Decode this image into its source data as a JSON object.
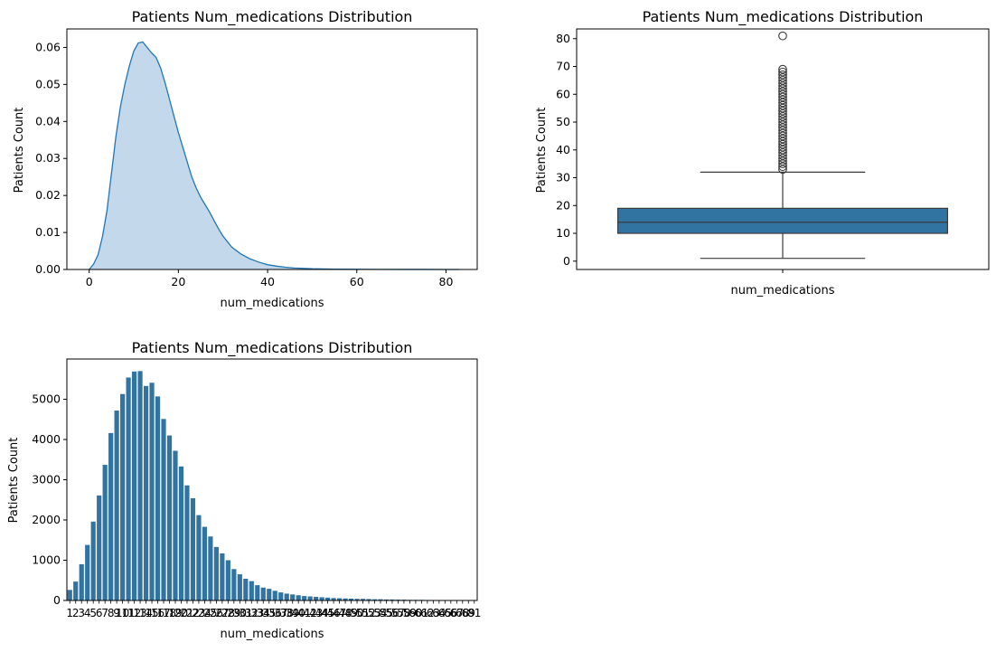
{
  "chart_data": [
    {
      "type": "area",
      "title": "Patients Num_medications Distribution",
      "xlabel": "num_medications",
      "ylabel": "Patients Count",
      "xlim": [
        -5,
        87
      ],
      "ylim": [
        0,
        0.065
      ],
      "xticks": [
        "0",
        "20",
        "40",
        "60",
        "80"
      ],
      "yticks": [
        "0.00",
        "0.01",
        "0.02",
        "0.03",
        "0.04",
        "0.05",
        "0.06"
      ],
      "grid": false,
      "color": "#1f77b4",
      "fill_color": "#c4d8ec",
      "x": [
        0,
        1,
        2,
        3,
        4,
        5,
        6,
        7,
        8,
        9,
        10,
        11,
        12,
        13,
        14,
        15,
        16,
        17,
        18,
        19,
        20,
        21,
        22,
        23,
        24,
        25,
        26,
        27,
        28,
        29,
        30,
        32,
        34,
        36,
        38,
        40,
        42,
        44,
        46,
        48,
        50,
        55,
        60,
        65,
        70,
        75,
        80,
        83
      ],
      "y": [
        0.0,
        0.0015,
        0.004,
        0.009,
        0.016,
        0.026,
        0.036,
        0.044,
        0.05,
        0.055,
        0.059,
        0.0612,
        0.0615,
        0.06,
        0.0585,
        0.0573,
        0.0545,
        0.0505,
        0.046,
        0.0415,
        0.037,
        0.033,
        0.029,
        0.025,
        0.022,
        0.0195,
        0.0175,
        0.0155,
        0.0132,
        0.011,
        0.009,
        0.006,
        0.0042,
        0.0029,
        0.002,
        0.0013,
        0.0009,
        0.0006,
        0.0004,
        0.0003,
        0.0002,
        0.0001,
        6e-05,
        3e-05,
        2e-05,
        1e-05,
        0.0,
        0.0
      ]
    },
    {
      "type": "box",
      "title": "Patients Num_medications Distribution",
      "xlabel": "num_medications",
      "ylabel": "Patients Count",
      "ylim": [
        -3,
        83.5
      ],
      "yticks": [
        "0",
        "10",
        "20",
        "30",
        "40",
        "50",
        "60",
        "70",
        "80"
      ],
      "grid": false,
      "color": "#3274a1",
      "whisker_low": 1,
      "q1": 10,
      "median": 14,
      "q3": 19,
      "whisker_high": 32,
      "outliers": [
        33,
        34,
        35,
        36,
        37,
        38,
        39,
        40,
        41,
        42,
        43,
        44,
        45,
        46,
        47,
        48,
        49,
        50,
        51,
        52,
        53,
        54,
        55,
        56,
        57,
        58,
        59,
        60,
        61,
        62,
        63,
        64,
        65,
        66,
        67,
        68,
        69,
        81
      ]
    },
    {
      "type": "bar",
      "title": "Patients Num_medications Distribution",
      "xlabel": "num_medications",
      "ylabel": "Patients Count",
      "ylim": [
        0,
        6000
      ],
      "yticks": [
        "0",
        "1000",
        "2000",
        "3000",
        "4000",
        "5000"
      ],
      "grid": false,
      "color": "#3274a1",
      "categories": [
        "1",
        "2",
        "3",
        "4",
        "5",
        "6",
        "7",
        "8",
        "9",
        "10",
        "11",
        "12",
        "13",
        "14",
        "15",
        "16",
        "17",
        "18",
        "19",
        "20",
        "21",
        "22",
        "23",
        "24",
        "25",
        "26",
        "27",
        "28",
        "29",
        "30",
        "31",
        "32",
        "33",
        "34",
        "35",
        "36",
        "37",
        "38",
        "39",
        "40",
        "41",
        "42",
        "43",
        "44",
        "45",
        "46",
        "47",
        "48",
        "49",
        "50",
        "51",
        "52",
        "53",
        "54",
        "55",
        "56",
        "57",
        "58",
        "59",
        "60",
        "61",
        "62",
        "63",
        "64",
        "65",
        "66",
        "67",
        "68",
        "69",
        "81"
      ],
      "values": [
        262,
        470,
        900,
        1380,
        1960,
        2610,
        3370,
        4160,
        4720,
        5130,
        5540,
        5690,
        5700,
        5330,
        5410,
        5070,
        4510,
        4100,
        3720,
        3330,
        2860,
        2540,
        2120,
        1830,
        1590,
        1330,
        1170,
        1000,
        780,
        650,
        540,
        480,
        380,
        320,
        290,
        240,
        200,
        170,
        150,
        130,
        110,
        100,
        90,
        80,
        70,
        60,
        55,
        50,
        45,
        40,
        40,
        35,
        30,
        30,
        25,
        25,
        20,
        20,
        15,
        15,
        15,
        12,
        10,
        10,
        10,
        8,
        8,
        6,
        5,
        1
      ]
    }
  ]
}
